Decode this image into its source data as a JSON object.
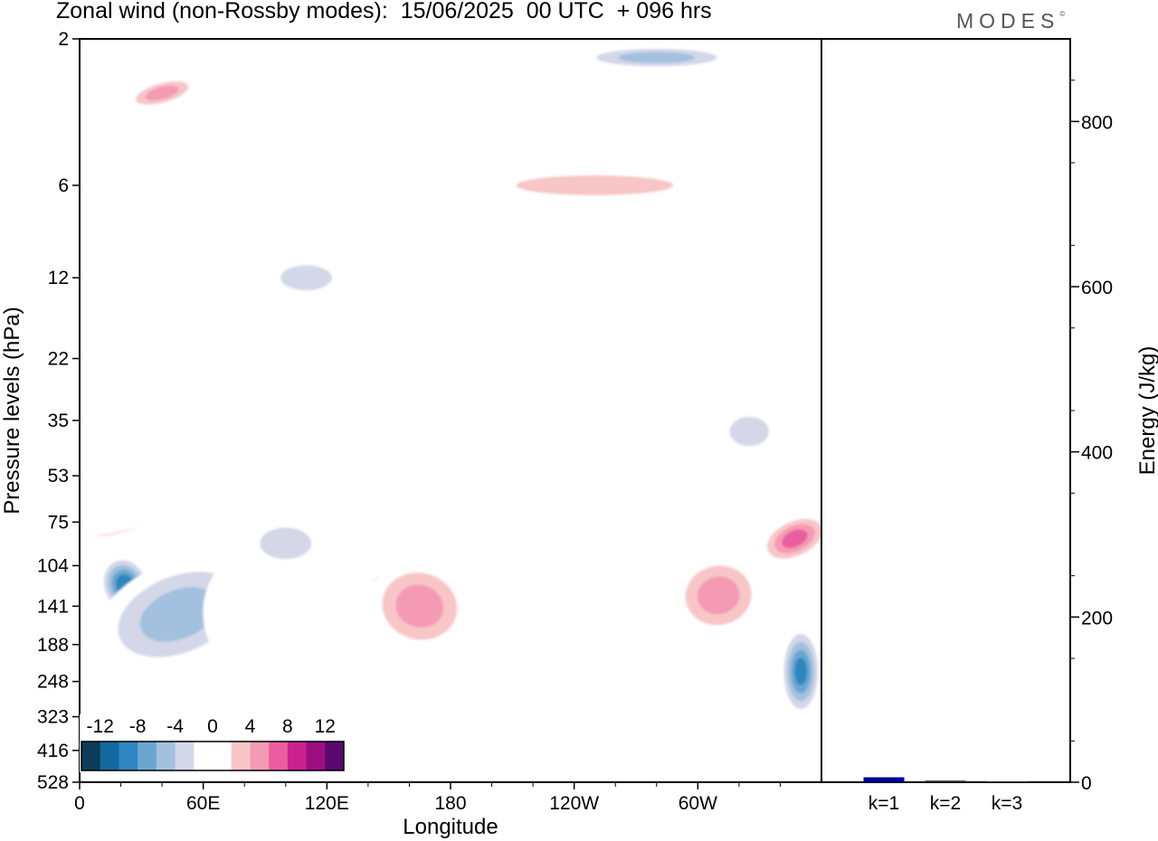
{
  "header": {
    "title": "Zonal wind (non-Rossby modes):  15/06/2025  00 UTC  + 096 hrs",
    "logo": "MODES",
    "logo_mark": "©"
  },
  "chart_data": [
    {
      "type": "heatmap",
      "title": "Zonal wind (non-Rossby modes):  15/06/2025  00 UTC  + 096 hrs",
      "xlabel": "Longitude",
      "ylabel": "Pressure levels (hPa)",
      "x_ticks": [
        "0",
        "60E",
        "120E",
        "180",
        "120W",
        "60W"
      ],
      "y_ticks": [
        "2",
        "6",
        "12",
        "22",
        "35",
        "53",
        "75",
        "104",
        "141",
        "188",
        "248",
        "323",
        "416",
        "528"
      ],
      "colorbar": {
        "labels": [
          "-12",
          "-8",
          "-4",
          "0",
          "4",
          "8",
          "12"
        ],
        "colors": [
          "#0b3d58",
          "#1468a0",
          "#2e86c1",
          "#6aa7d0",
          "#a3c1df",
          "#d3d7e8",
          "#ffffff",
          "#ffffff",
          "#f8c6c6",
          "#f59ab4",
          "#ea5d9e",
          "#cc2090",
          "#9a0e82",
          "#5a0870"
        ]
      },
      "features": [
        {
          "x": 42,
          "y": 141,
          "rx": 22,
          "ry": 2.2,
          "value": -14,
          "rot": -25
        },
        {
          "x": 22,
          "y": 120,
          "rx": 12,
          "ry": 2.0,
          "value": -11,
          "rot": -20
        },
        {
          "x": 48,
          "y": 150,
          "rx": 42,
          "ry": 4.2,
          "value": -6,
          "rot": -22
        },
        {
          "x": 90,
          "y": 150,
          "rx": 30,
          "ry": 6.0,
          "value": -3,
          "rot": -10
        },
        {
          "x": 100,
          "y": 88,
          "rx": 18,
          "ry": 1.4,
          "value": -5,
          "rot": 0
        },
        {
          "x": 148,
          "y": 141,
          "rx": 12,
          "ry": 2.8,
          "value": 11,
          "rot": 5
        },
        {
          "x": 175,
          "y": 170,
          "rx": 45,
          "ry": 6.5,
          "value": 3,
          "rot": 0
        },
        {
          "x": 165,
          "y": 141,
          "rx": 25,
          "ry": 3.5,
          "value": 6,
          "rot": 15
        },
        {
          "x": 288,
          "y": 141,
          "rx": 12,
          "ry": 2.4,
          "value": 10,
          "rot": 0
        },
        {
          "x": 300,
          "y": 160,
          "rx": 45,
          "ry": 6.0,
          "value": 3,
          "rot": 0
        },
        {
          "x": 310,
          "y": 130,
          "rx": 22,
          "ry": 3.0,
          "value": 6,
          "rot": -10
        },
        {
          "x": 347,
          "y": 85,
          "rx": 18,
          "ry": 1.3,
          "value": 8,
          "rot": -25
        },
        {
          "x": 25,
          "y": 70,
          "rx": 35,
          "ry": 1.2,
          "value": 8,
          "rot": -18
        },
        {
          "x": 35,
          "y": 60,
          "rx": 55,
          "ry": 2.0,
          "value": 3,
          "rot": -18
        },
        {
          "x": 350,
          "y": 230,
          "rx": 10,
          "ry": 3.5,
          "value": -10,
          "rot": 0
        },
        {
          "x": 235,
          "y": 17,
          "rx": 25,
          "ry": 1.2,
          "value": 5,
          "rot": 20
        },
        {
          "x": 235,
          "y": 16,
          "rx": 40,
          "ry": 2.4,
          "value": 2,
          "rot": 20
        },
        {
          "x": 110,
          "y": 12,
          "rx": 18,
          "ry": 1.0,
          "value": -5,
          "rot": 0
        },
        {
          "x": 60,
          "y": 15,
          "rx": 40,
          "ry": 1.4,
          "value": -2,
          "rot": 0
        },
        {
          "x": 280,
          "y": 2.3,
          "rx": 40,
          "ry": 0.5,
          "value": -6,
          "rot": 0
        },
        {
          "x": 320,
          "y": 5,
          "rx": 45,
          "ry": 0.8,
          "value": -3,
          "rot": 0
        },
        {
          "x": 40,
          "y": 3,
          "rx": 18,
          "ry": 0.6,
          "value": 6,
          "rot": -15
        },
        {
          "x": 130,
          "y": 6,
          "rx": 55,
          "ry": 0.9,
          "value": 3,
          "rot": 0
        },
        {
          "x": 250,
          "y": 6,
          "rx": 60,
          "ry": 0.8,
          "value": 4,
          "rot": 0
        },
        {
          "x": 325,
          "y": 38,
          "rx": 15,
          "ry": 1.4,
          "value": -4,
          "rot": 0
        },
        {
          "x": 75,
          "y": 290,
          "rx": 25,
          "ry": 2.0,
          "value": -2,
          "rot": 0
        },
        {
          "x": 50,
          "y": 380,
          "rx": 12,
          "ry": 2.0,
          "value": 2,
          "rot": 0
        },
        {
          "x": 300,
          "y": 420,
          "rx": 10,
          "ry": 2.0,
          "value": -2,
          "rot": 0
        }
      ]
    },
    {
      "type": "bar",
      "categories": [
        "k=1",
        "k=2",
        "k=3"
      ],
      "values": [
        6,
        2,
        1
      ],
      "ylabel": "Energy (J/kg)",
      "ylim": [
        0,
        900
      ],
      "y_ticks": [
        "0",
        "200",
        "400",
        "600",
        "800"
      ],
      "color": "#000099"
    }
  ]
}
